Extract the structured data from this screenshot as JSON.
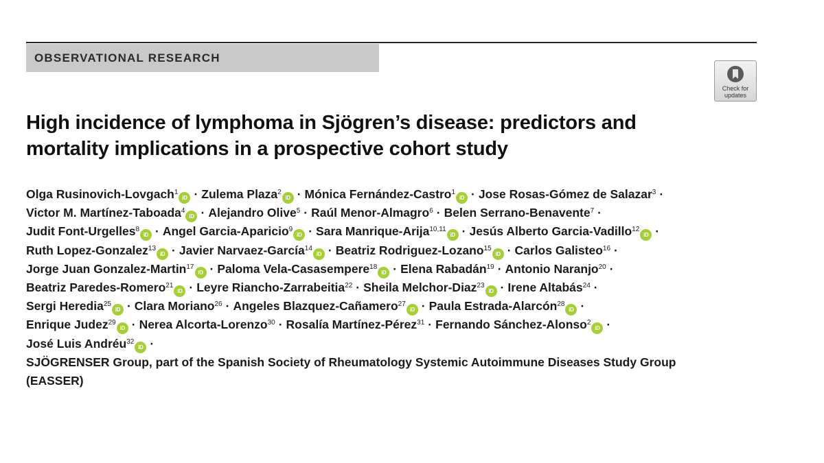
{
  "section_label": "OBSERVATIONAL RESEARCH",
  "check_updates": {
    "line1": "Check for",
    "line2": "updates",
    "icon": "bookmark-icon"
  },
  "title_line1": "High incidence of lymphoma in Sjögren’s disease: predictors and",
  "title_line2": "mortality implications in a prospective cohort study",
  "separator": "·",
  "orcid_icon_text": "iD",
  "orcid_color": "#a6ce39",
  "authors": [
    {
      "name": "Olga Rusinovich-Lovgach",
      "sup": "1",
      "orcid": true
    },
    {
      "name": "Zulema Plaza",
      "sup": "2",
      "orcid": true
    },
    {
      "name": "Mónica Fernández-Castro",
      "sup": "1",
      "orcid": true
    },
    {
      "name": "Jose Rosas-Gómez de Salazar",
      "sup": "3",
      "orcid": false
    },
    {
      "name": "Victor M. Martínez-Taboada",
      "sup": "4",
      "orcid": true
    },
    {
      "name": "Alejandro Olive",
      "sup": "5",
      "orcid": false
    },
    {
      "name": "Raúl Menor-Almagro",
      "sup": "6",
      "orcid": false
    },
    {
      "name": "Belen Serrano-Benavente",
      "sup": "7",
      "orcid": false
    },
    {
      "name": "Judit Font-Urgelles",
      "sup": "8",
      "orcid": true
    },
    {
      "name": "Angel Garcia-Aparicio",
      "sup": "9",
      "orcid": true
    },
    {
      "name": "Sara Manrique-Arija",
      "sup": "10,11",
      "orcid": true
    },
    {
      "name": "Jesús Alberto Garcia-Vadillo",
      "sup": "12",
      "orcid": true
    },
    {
      "name": "Ruth Lopez-Gonzalez",
      "sup": "13",
      "orcid": true
    },
    {
      "name": "Javier Narvaez-García",
      "sup": "14",
      "orcid": true
    },
    {
      "name": "Beatriz Rodriguez-Lozano",
      "sup": "15",
      "orcid": true
    },
    {
      "name": "Carlos Galisteo",
      "sup": "16",
      "orcid": false
    },
    {
      "name": "Jorge Juan Gonzalez-Martin",
      "sup": "17",
      "orcid": true
    },
    {
      "name": "Paloma Vela-Casasempere",
      "sup": "18",
      "orcid": true
    },
    {
      "name": "Elena Rabadán",
      "sup": "19",
      "orcid": false
    },
    {
      "name": "Antonio Naranjo",
      "sup": "20",
      "orcid": false
    },
    {
      "name": "Beatriz Paredes-Romero",
      "sup": "21",
      "orcid": true
    },
    {
      "name": "Leyre Riancho-Zarrabeitia",
      "sup": "22",
      "orcid": false
    },
    {
      "name": "Sheila Melchor-Diaz",
      "sup": "23",
      "orcid": true
    },
    {
      "name": "Irene Altabás",
      "sup": "24",
      "orcid": false
    },
    {
      "name": "Sergi Heredia",
      "sup": "25",
      "orcid": true
    },
    {
      "name": "Clara Moriano",
      "sup": "26",
      "orcid": false
    },
    {
      "name": "Angeles Blazquez-Cañamero",
      "sup": "27",
      "orcid": true
    },
    {
      "name": "Paula Estrada-Alarcón",
      "sup": "28",
      "orcid": true
    },
    {
      "name": "Enrique Judez",
      "sup": "29",
      "orcid": true
    },
    {
      "name": "Nerea Alcorta-Lorenzo",
      "sup": "30",
      "orcid": false
    },
    {
      "name": "Rosalía Martínez-Pérez",
      "sup": "31",
      "orcid": false
    },
    {
      "name": "Fernando Sánchez-Alonso",
      "sup": "2",
      "orcid": true
    },
    {
      "name": "José Luis Andréu",
      "sup": "32",
      "orcid": true
    }
  ],
  "author_lines": [
    [
      0,
      1,
      2,
      3
    ],
    [
      4,
      5,
      6,
      7
    ],
    [
      8,
      9,
      10,
      11
    ],
    [
      12,
      13,
      14,
      15
    ],
    [
      16,
      17,
      18,
      19
    ],
    [
      20,
      21,
      22,
      23
    ],
    [
      24,
      25,
      26,
      27
    ],
    [
      28,
      29,
      30,
      31
    ],
    [
      32
    ]
  ],
  "group_line1": "SJÖGRENSER Group, part of the Spanish Society of Rheumatology Systemic Autoimmune Diseases Study Group",
  "group_line2": "(EASSER)"
}
